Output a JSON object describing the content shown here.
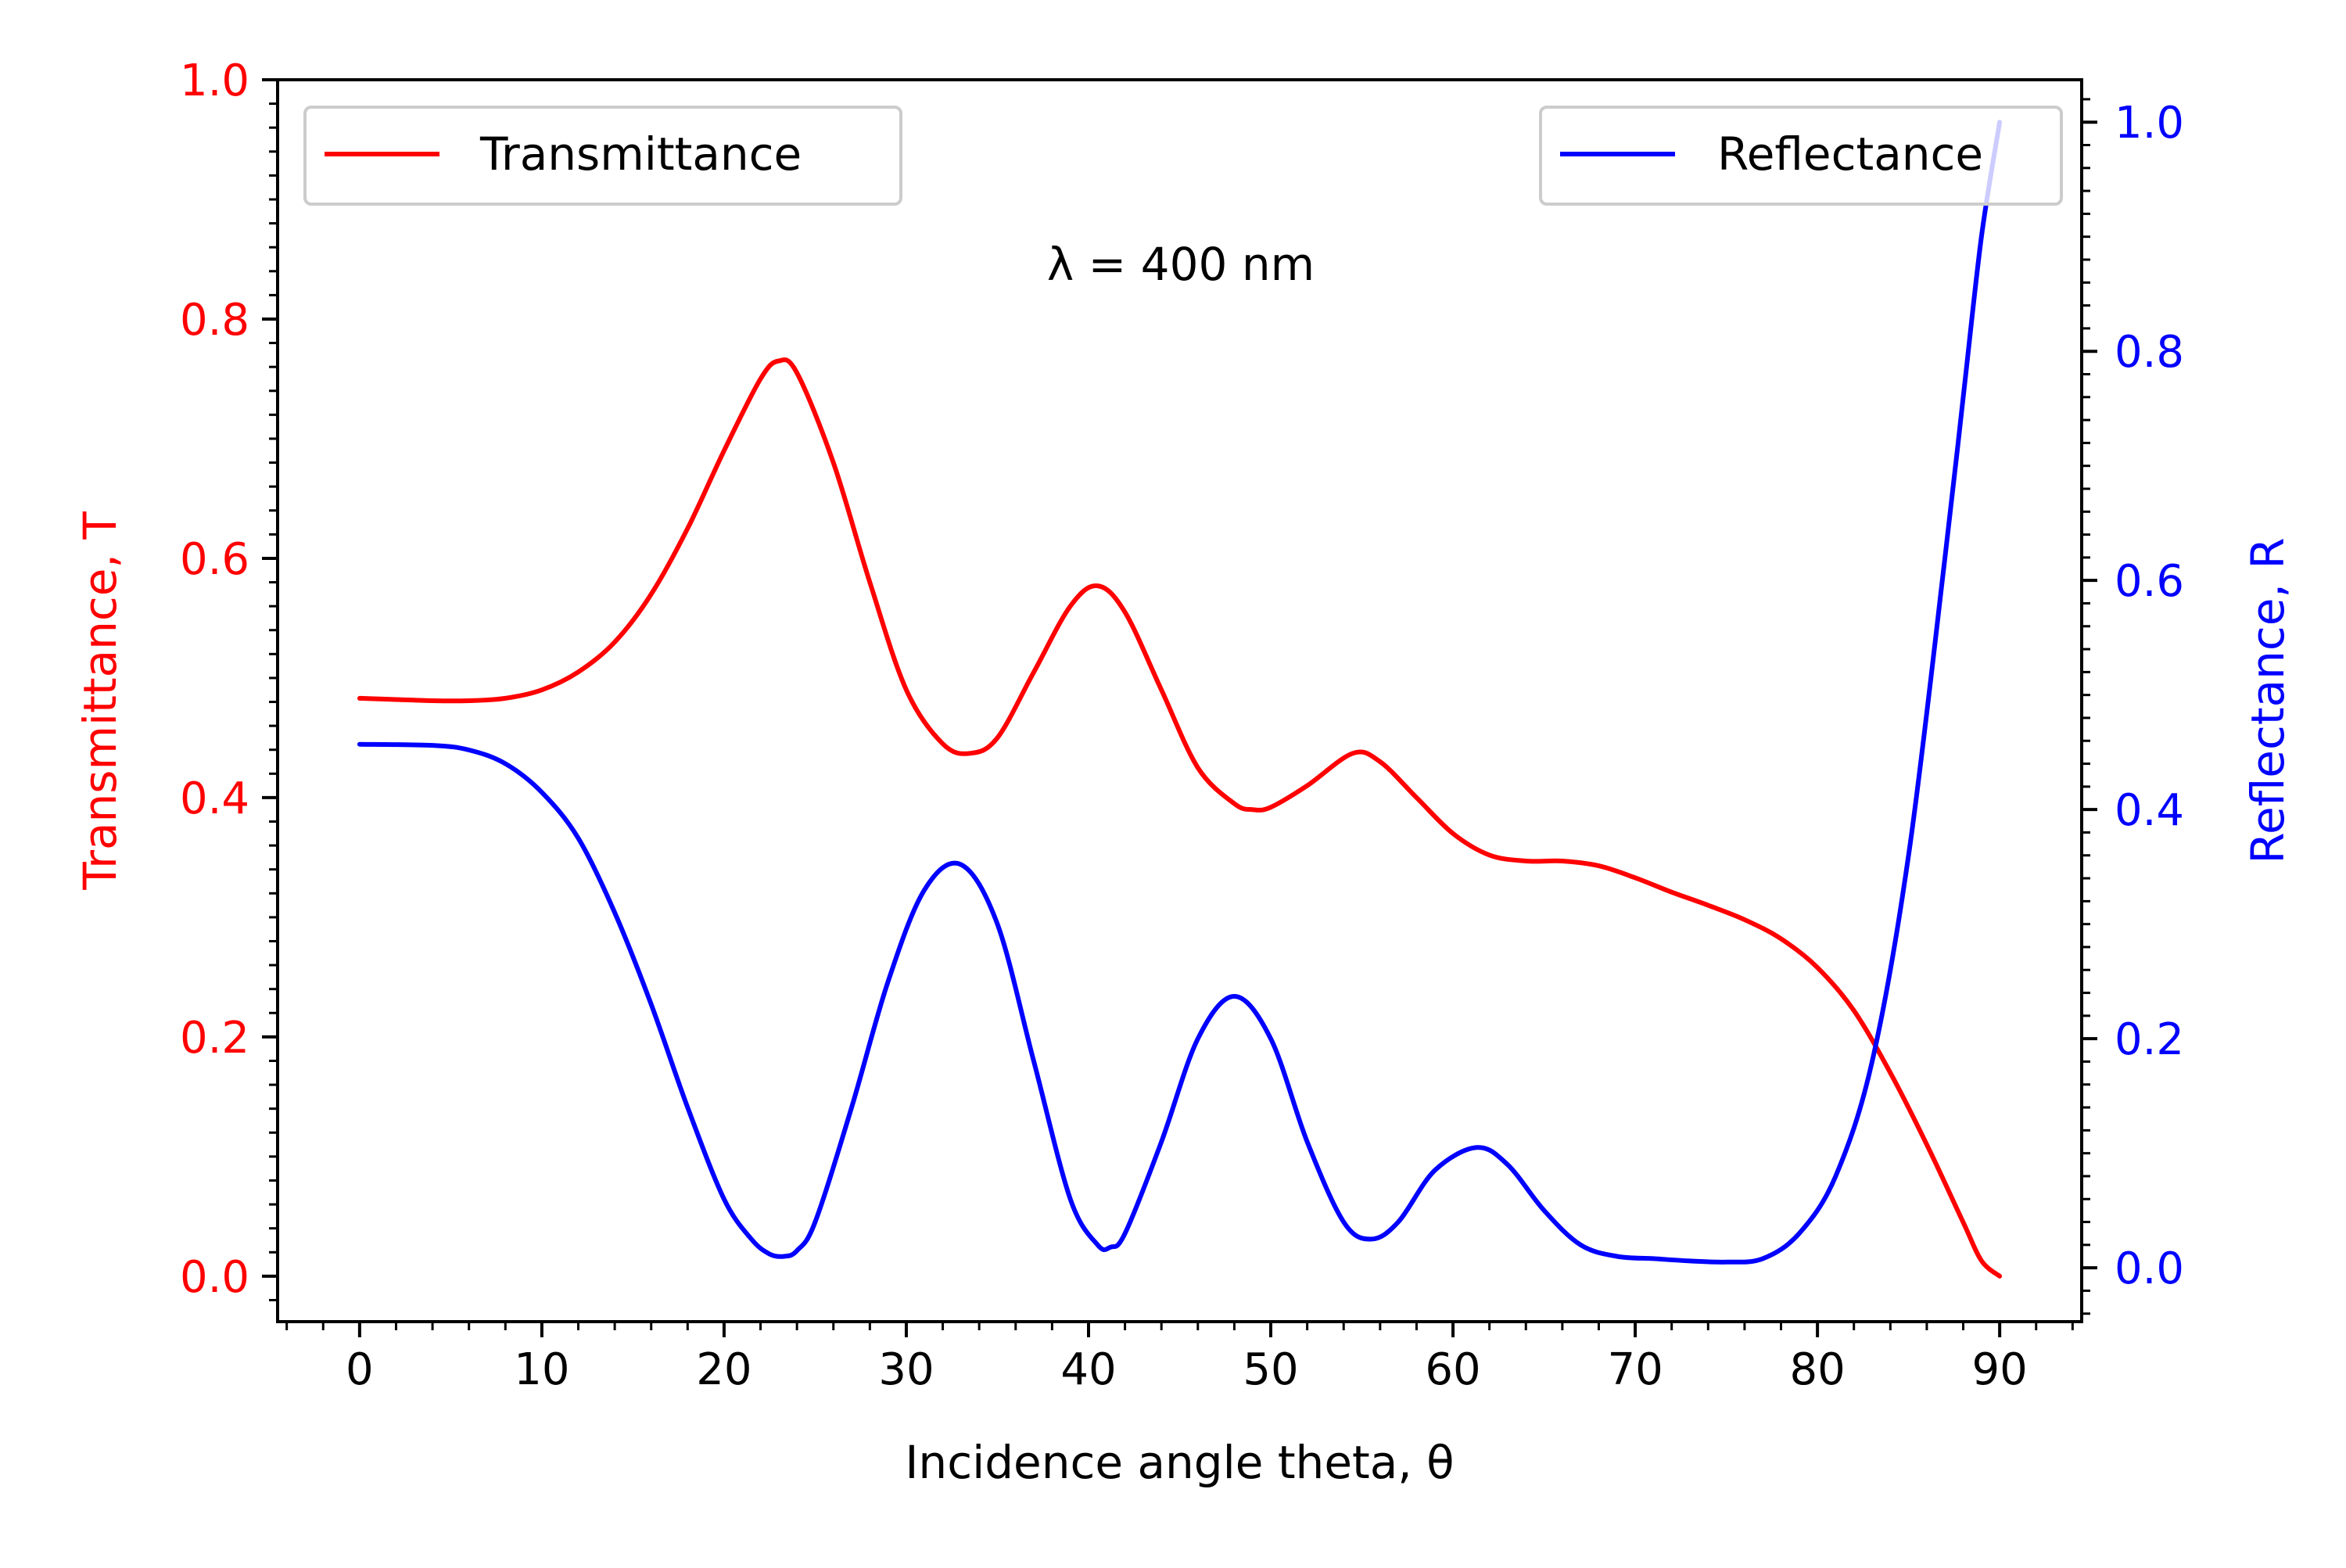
{
  "chart_data": {
    "type": "line",
    "annotation": "λ = 400 nm",
    "xlabel": "Incidence angle theta, θ",
    "ylabel_left": "Transmittance, T",
    "ylabel_right": "Reflectance, R",
    "xlim": [
      -4.5,
      94.5
    ],
    "ylim_left": [
      -0.038,
      1.0
    ],
    "ylim_right": [
      -0.047,
      1.037
    ],
    "x_ticks": [
      0,
      10,
      20,
      30,
      40,
      50,
      60,
      70,
      80,
      90
    ],
    "x_tick_labels": [
      "0",
      "10",
      "20",
      "30",
      "40",
      "50",
      "60",
      "70",
      "80",
      "90"
    ],
    "y_left_ticks": [
      0.0,
      0.2,
      0.4,
      0.6,
      0.8,
      1.0
    ],
    "y_left_tick_labels": [
      "0.0",
      "0.2",
      "0.4",
      "0.6",
      "0.8",
      "1.0"
    ],
    "y_right_ticks": [
      0.0,
      0.2,
      0.4,
      0.6,
      0.8,
      1.0
    ],
    "y_right_tick_labels": [
      "0.0",
      "0.2",
      "0.4",
      "0.6",
      "0.8",
      "1.0"
    ],
    "grid": false,
    "legends": [
      {
        "label": "Transmittance",
        "placement": "upper-left",
        "color": "#ff0000"
      },
      {
        "label": "Reflectance",
        "placement": "upper-right",
        "color": "#0000ff"
      }
    ],
    "series": [
      {
        "name": "Transmittance",
        "axis": "left",
        "color": "#ff0000",
        "x": [
          0,
          2,
          4,
          6,
          8,
          10,
          12,
          14,
          16,
          18,
          20,
          22,
          23,
          24,
          26,
          28,
          30,
          32,
          33.5,
          35,
          37,
          39,
          40.5,
          42,
          44,
          46,
          48,
          49,
          50,
          52,
          54.5,
          56,
          58,
          60,
          62,
          64,
          66,
          68,
          70,
          72,
          74,
          76,
          78,
          80,
          82,
          84,
          86,
          88,
          89,
          90
        ],
        "y": [
          0.483,
          0.482,
          0.481,
          0.481,
          0.483,
          0.49,
          0.505,
          0.53,
          0.57,
          0.625,
          0.69,
          0.75,
          0.765,
          0.755,
          0.68,
          0.58,
          0.49,
          0.445,
          0.437,
          0.45,
          0.505,
          0.56,
          0.577,
          0.555,
          0.49,
          0.425,
          0.395,
          0.39,
          0.392,
          0.41,
          0.437,
          0.43,
          0.4,
          0.37,
          0.352,
          0.347,
          0.347,
          0.343,
          0.333,
          0.321,
          0.31,
          0.298,
          0.282,
          0.258,
          0.222,
          0.17,
          0.11,
          0.045,
          0.013,
          0.0
        ]
      },
      {
        "name": "Reflectance",
        "axis": "right",
        "color": "#0000ff",
        "x": [
          0,
          4,
          6,
          8,
          10,
          12,
          14,
          16,
          18,
          20,
          21.5,
          22.5,
          23.3,
          24,
          25,
          27,
          29,
          31,
          33,
          35,
          37,
          39,
          40.5,
          41.2,
          42,
          44,
          46,
          48,
          50,
          52,
          54,
          55.5,
          57,
          59,
          61.3,
          63,
          65,
          67,
          69,
          71,
          73,
          75,
          77,
          79,
          81,
          83,
          85,
          87,
          88,
          89,
          90
        ],
        "y": [
          0.457,
          0.456,
          0.452,
          0.44,
          0.415,
          0.375,
          0.31,
          0.23,
          0.14,
          0.06,
          0.025,
          0.012,
          0.01,
          0.015,
          0.04,
          0.14,
          0.25,
          0.33,
          0.352,
          0.3,
          0.18,
          0.06,
          0.02,
          0.018,
          0.03,
          0.11,
          0.2,
          0.237,
          0.2,
          0.11,
          0.04,
          0.025,
          0.04,
          0.085,
          0.105,
          0.09,
          0.05,
          0.02,
          0.01,
          0.008,
          0.006,
          0.005,
          0.008,
          0.03,
          0.08,
          0.18,
          0.36,
          0.62,
          0.76,
          0.9,
          1.0
        ]
      }
    ],
    "colors": {
      "left_axis": "#ff0000",
      "right_axis": "#0000ff",
      "frame": "#000000"
    }
  }
}
